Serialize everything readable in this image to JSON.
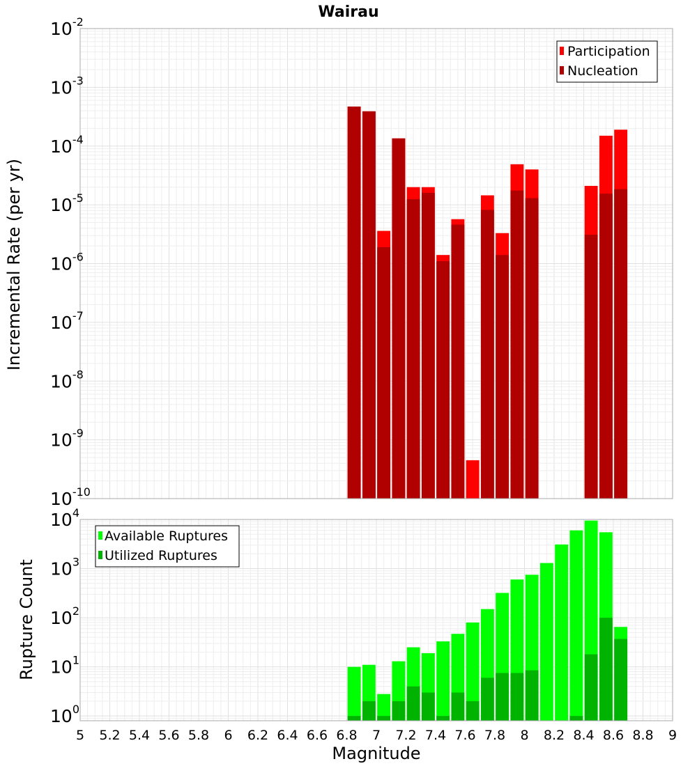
{
  "colors": {
    "participation": "#ff0000",
    "nucleation": "#b00000",
    "available": "#00ff00",
    "utilized": "#00b300"
  },
  "chart_data": [
    {
      "type": "bar",
      "title": "Wairau",
      "xlabel": "",
      "ylabel": "Incremental Rate (per yr)",
      "yscale": "log",
      "ylim": [
        1e-10,
        0.01
      ],
      "xlim": [
        5,
        9
      ],
      "x_tick_labels": [],
      "y_ticks": [
        {
          "base": "10",
          "exp": "-10"
        },
        {
          "base": "10",
          "exp": "-9"
        },
        {
          "base": "10",
          "exp": "-8"
        },
        {
          "base": "10",
          "exp": "-7"
        },
        {
          "base": "10",
          "exp": "-6"
        },
        {
          "base": "10",
          "exp": "-5"
        },
        {
          "base": "10",
          "exp": "-4"
        },
        {
          "base": "10",
          "exp": "-3"
        },
        {
          "base": "10",
          "exp": "-2"
        }
      ],
      "legend_position": "top-right",
      "grid": true,
      "bar_width": 0.1,
      "x": [
        6.85,
        6.95,
        7.05,
        7.15,
        7.25,
        7.35,
        7.45,
        7.55,
        7.65,
        7.75,
        7.85,
        7.95,
        8.05,
        8.15,
        8.25,
        8.35,
        8.45,
        8.55,
        8.65
      ],
      "series": [
        {
          "name": "Participation",
          "color_key": "participation",
          "values": [
            0.00047,
            0.00039,
            3.6e-06,
            0.000135,
            2e-05,
            2e-05,
            1.4e-06,
            5.7e-06,
            4.5e-10,
            1.45e-05,
            3.3e-06,
            4.9e-05,
            4e-05,
            null,
            null,
            null,
            2.1e-05,
            0.00015,
            0.00019
          ]
        },
        {
          "name": "Nucleation",
          "color_key": "nucleation",
          "values": [
            0.00047,
            0.00039,
            1.9e-06,
            0.000135,
            1.25e-05,
            1.6e-05,
            1.1e-06,
            4.6e-06,
            null,
            8.2e-06,
            1.4e-06,
            1.75e-05,
            1.3e-05,
            null,
            null,
            null,
            3.1e-06,
            1.55e-05,
            1.85e-05
          ]
        }
      ]
    },
    {
      "type": "bar",
      "title": "",
      "xlabel": "Magnitude",
      "ylabel": "Rupture Count",
      "yscale": "log",
      "ylim": [
        0.8,
        10000
      ],
      "xlim": [
        5,
        9
      ],
      "x_tick_labels": [
        "5",
        "5.2",
        "5.4",
        "5.6",
        "5.8",
        "6",
        "6.2",
        "6.4",
        "6.6",
        "6.8",
        "7",
        "7.2",
        "7.4",
        "7.6",
        "7.8",
        "8",
        "8.2",
        "8.4",
        "8.6",
        "8.8",
        "9"
      ],
      "y_ticks": [
        {
          "base": "10",
          "exp": "0"
        },
        {
          "base": "10",
          "exp": "1"
        },
        {
          "base": "10",
          "exp": "2"
        },
        {
          "base": "10",
          "exp": "3"
        },
        {
          "base": "10",
          "exp": "4"
        }
      ],
      "legend_position": "top-left",
      "grid": true,
      "bar_width": 0.1,
      "x": [
        6.85,
        6.95,
        7.05,
        7.15,
        7.25,
        7.35,
        7.45,
        7.55,
        7.65,
        7.75,
        7.85,
        7.95,
        8.05,
        8.15,
        8.25,
        8.35,
        8.45,
        8.55,
        8.65
      ],
      "series": [
        {
          "name": "Available Ruptures",
          "color_key": "available",
          "values": [
            10,
            11,
            2.8,
            13,
            25,
            19,
            33,
            47,
            80,
            150,
            320,
            600,
            750,
            1300,
            3100,
            6000,
            9500,
            5500,
            65
          ]
        },
        {
          "name": "Utilized Ruptures",
          "color_key": "utilized",
          "values": [
            1,
            2,
            1,
            2,
            4,
            3,
            1,
            3,
            2,
            6,
            7.5,
            7.5,
            8.5,
            null,
            null,
            1,
            18,
            100,
            37
          ]
        }
      ]
    }
  ]
}
